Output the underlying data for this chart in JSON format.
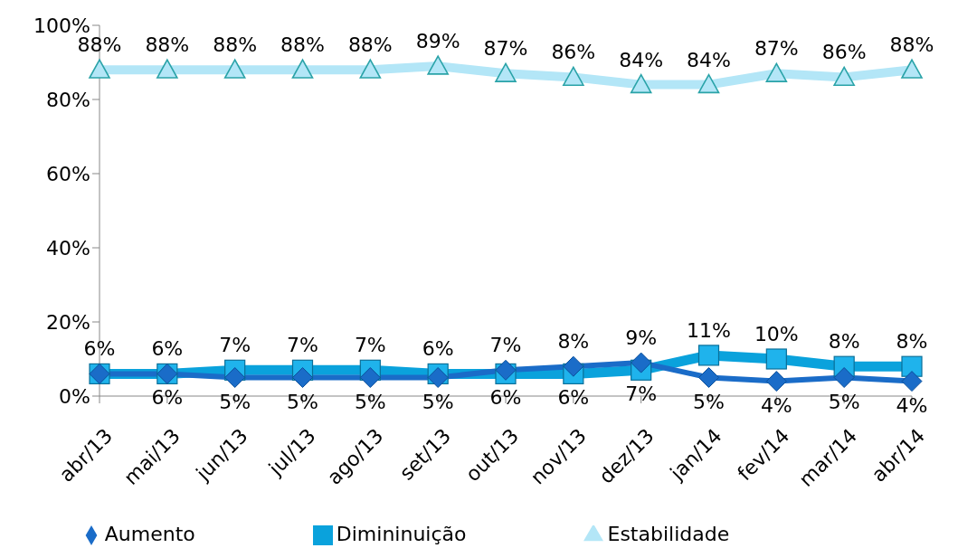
{
  "chart_data": {
    "type": "line",
    "categories": [
      "abr/13",
      "mai/13",
      "jun/13",
      "jul/13",
      "ago/13",
      "set/13",
      "out/13",
      "nov/13",
      "dez/13",
      "jan/14",
      "fev/14",
      "mar/14",
      "abr/14"
    ],
    "series": [
      {
        "name": "Aumento",
        "color": "#1a6cc8",
        "marker": "diamond",
        "values": [
          6,
          6,
          5,
          5,
          5,
          5,
          7,
          8,
          9,
          5,
          4,
          5,
          4
        ],
        "value_labels": [
          null,
          "6%",
          "5%",
          "5%",
          "5%",
          "5%",
          "7%",
          "8%",
          "9%",
          "5%",
          "4%",
          "5%",
          "4%"
        ]
      },
      {
        "name": "Dimininuição",
        "color": "#0aa2dc",
        "marker": "square",
        "values": [
          6,
          6,
          7,
          7,
          7,
          6,
          6,
          6,
          7,
          11,
          10,
          8,
          8
        ],
        "value_labels": [
          "6%",
          "6%",
          "7%",
          "7%",
          "7%",
          "6%",
          "6%",
          "6%",
          "7%",
          "11%",
          "10%",
          "8%",
          "8%"
        ]
      },
      {
        "name": "Estabilidade",
        "color": "#b3e6f7",
        "marker": "triangle",
        "values": [
          88,
          88,
          88,
          88,
          88,
          89,
          87,
          86,
          84,
          84,
          87,
          86,
          88
        ],
        "value_labels": [
          "88%",
          "88%",
          "88%",
          "88%",
          "88%",
          "89%",
          "87%",
          "86%",
          "84%",
          "84%",
          "87%",
          "86%",
          "88%"
        ]
      }
    ],
    "ylim": [
      0,
      100
    ],
    "yticks": [
      {
        "value": 0,
        "label": "0%"
      },
      {
        "value": 20,
        "label": "20%"
      },
      {
        "value": 40,
        "label": "40%"
      },
      {
        "value": 60,
        "label": "60%"
      },
      {
        "value": 80,
        "label": "80%"
      },
      {
        "value": 100,
        "label": "100%"
      }
    ],
    "grid": false,
    "legend": "bottom"
  }
}
